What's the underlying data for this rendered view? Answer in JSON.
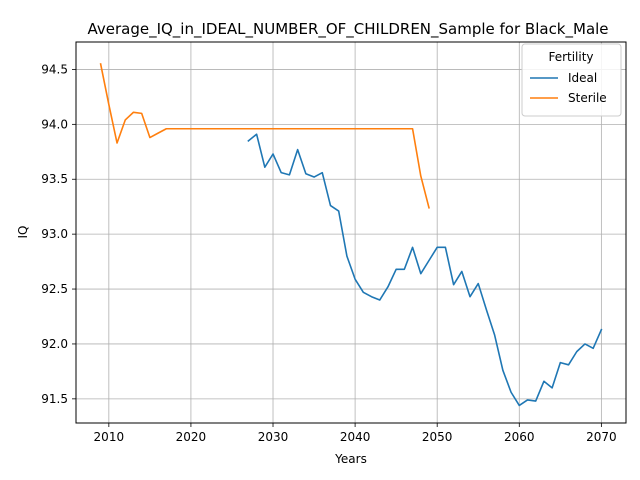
{
  "chart_data": {
    "type": "line",
    "title": "Average_IQ_in_IDEAL_NUMBER_OF_CHILDREN_Sample for Black_Male",
    "xlabel": "Years",
    "ylabel": "IQ",
    "xlim": [
      2006,
      2073
    ],
    "ylim": [
      91.28,
      94.75
    ],
    "xticks": [
      2010,
      2020,
      2030,
      2040,
      2050,
      2060,
      2070
    ],
    "yticks": [
      91.5,
      92.0,
      92.5,
      93.0,
      93.5,
      94.0,
      94.5
    ],
    "xtick_labels": [
      "2010",
      "2020",
      "2030",
      "2040",
      "2050",
      "2060",
      "2070"
    ],
    "ytick_labels": [
      "91.5",
      "92.0",
      "92.5",
      "93.0",
      "93.5",
      "94.0",
      "94.5"
    ],
    "grid": true,
    "legend": {
      "title": "Fertility",
      "position": "top-right"
    },
    "series": [
      {
        "name": "Ideal",
        "color": "#1f77b4",
        "x": [
          2027,
          2028,
          2029,
          2030,
          2031,
          2032,
          2033,
          2034,
          2035,
          2036,
          2037,
          2038,
          2039,
          2040,
          2041,
          2042,
          2043,
          2044,
          2045,
          2046,
          2047,
          2048,
          2049,
          2050,
          2051,
          2052,
          2053,
          2054,
          2055,
          2056,
          2057,
          2058,
          2059,
          2060,
          2061,
          2062,
          2063,
          2064,
          2065,
          2066,
          2067,
          2068,
          2069,
          2070
        ],
        "values": [
          93.85,
          93.91,
          93.61,
          93.73,
          93.56,
          93.54,
          93.77,
          93.55,
          93.52,
          93.56,
          93.26,
          93.21,
          92.8,
          92.59,
          92.47,
          92.43,
          92.4,
          92.52,
          92.68,
          92.68,
          92.88,
          92.64,
          92.76,
          92.88,
          92.88,
          92.54,
          92.66,
          92.43,
          92.55,
          92.31,
          92.08,
          91.76,
          91.56,
          91.44,
          91.49,
          91.48,
          91.66,
          91.6,
          91.83,
          91.81,
          91.93,
          92.0,
          91.96,
          92.13
        ]
      },
      {
        "name": "Sterile",
        "color": "#ff7f0e",
        "x": [
          2009,
          2010,
          2011,
          2012,
          2013,
          2014,
          2015,
          2016,
          2017,
          2018,
          2019,
          2020,
          2021,
          2022,
          2023,
          2024,
          2025,
          2026,
          2027,
          2028,
          2029,
          2030,
          2031,
          2032,
          2033,
          2034,
          2035,
          2036,
          2037,
          2038,
          2039,
          2040,
          2041,
          2042,
          2043,
          2044,
          2045,
          2046,
          2047,
          2048,
          2049
        ],
        "values": [
          94.55,
          94.18,
          93.83,
          94.04,
          94.11,
          94.1,
          93.88,
          93.92,
          93.96,
          93.96,
          93.96,
          93.96,
          93.96,
          93.96,
          93.96,
          93.96,
          93.96,
          93.96,
          93.96,
          93.96,
          93.96,
          93.96,
          93.96,
          93.96,
          93.96,
          93.96,
          93.96,
          93.96,
          93.96,
          93.96,
          93.96,
          93.96,
          93.96,
          93.96,
          93.96,
          93.96,
          93.96,
          93.96,
          93.96,
          93.53,
          93.24
        ]
      }
    ]
  }
}
